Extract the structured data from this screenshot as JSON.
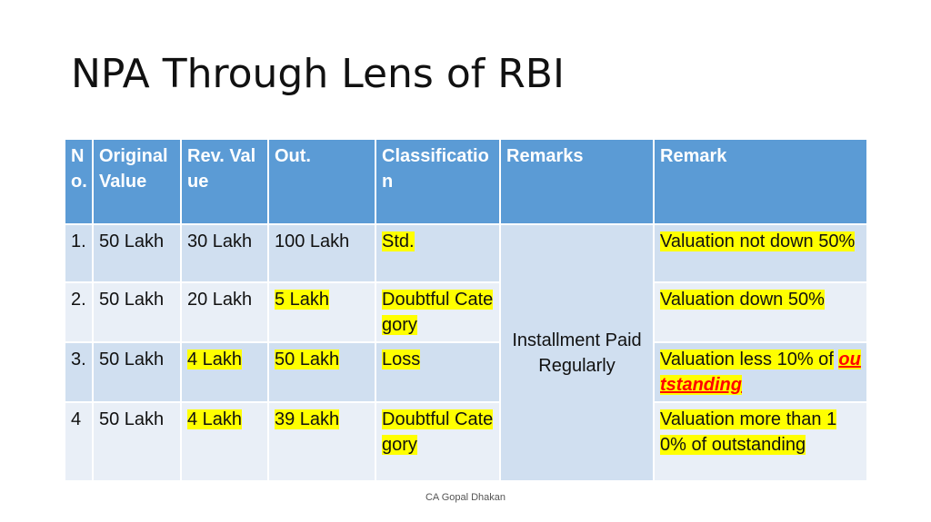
{
  "title": "NPA Through Lens of RBI",
  "table": {
    "headers": [
      "No.",
      "Original Value",
      "Rev. Value",
      "Out.",
      "Classification",
      "Remarks",
      "Remark"
    ],
    "rows": [
      {
        "no": "1.",
        "original": "50 Lakh",
        "rev": "30 Lakh",
        "out": "100 Lakh",
        "classification": "Std.",
        "remark": "Valuation not down 50%"
      },
      {
        "no": "2.",
        "original": "50 Lakh",
        "rev": "20 Lakh",
        "out": "5 Lakh",
        "classification": "Doubtful Category",
        "remark": "Valuation down 50%"
      },
      {
        "no": "3.",
        "original": "50 Lakh",
        "rev": "4 Lakh",
        "out": "50 Lakh",
        "classification": "Loss",
        "remark_prefix": "Valuation less 10% of",
        "remark_emphasis": "outstanding"
      },
      {
        "no": "4",
        "original": "50 Lakh",
        "rev": "4 Lakh",
        "out": "39 Lakh",
        "classification": "Doubtful Category",
        "remark": "Valuation more than 10% of outstanding"
      }
    ],
    "merged_remarks": "Installment Paid Regularly"
  },
  "footer": "CA Gopal Dhakan",
  "colors": {
    "header_bg": "#5b9bd5",
    "row_dark": "#d0dff0",
    "row_light": "#e9eff7",
    "highlight": "#ffff00",
    "emphasis": "#ff0000"
  }
}
